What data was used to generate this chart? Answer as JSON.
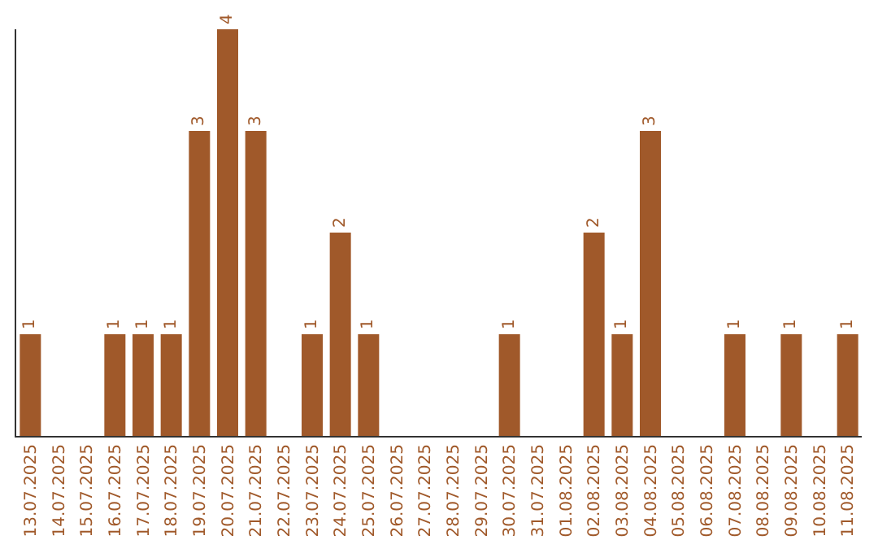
{
  "chart_data": {
    "type": "bar",
    "categories": [
      "13.07.2025",
      "14.07.2025",
      "15.07.2025",
      "16.07.2025",
      "17.07.2025",
      "18.07.2025",
      "19.07.2025",
      "20.07.2025",
      "21.07.2025",
      "22.07.2025",
      "23.07.2025",
      "24.07.2025",
      "25.07.2025",
      "26.07.2025",
      "27.07.2025",
      "28.07.2025",
      "29.07.2025",
      "30.07.2025",
      "31.07.2025",
      "01.08.2025",
      "02.08.2025",
      "03.08.2025",
      "04.08.2025",
      "05.08.2025",
      "06.08.2025",
      "07.08.2025",
      "08.08.2025",
      "09.08.2025",
      "10.08.2025",
      "11.08.2025"
    ],
    "values": [
      1,
      0,
      0,
      1,
      1,
      1,
      3,
      4,
      3,
      0,
      1,
      2,
      1,
      0,
      0,
      0,
      0,
      1,
      0,
      0,
      2,
      1,
      3,
      0,
      0,
      1,
      0,
      1,
      0,
      1
    ],
    "value_labels": [
      "1",
      null,
      null,
      "1",
      "1",
      "1",
      "3",
      "4",
      "3",
      null,
      "1",
      "2",
      "1",
      null,
      null,
      null,
      null,
      "1",
      null,
      null,
      "2",
      "1",
      "3",
      null,
      null,
      "1",
      null,
      "1",
      null,
      "1"
    ],
    "color": "#a0592a",
    "ylim": [
      0,
      4
    ],
    "tick_labels": "x",
    "legend": false
  }
}
